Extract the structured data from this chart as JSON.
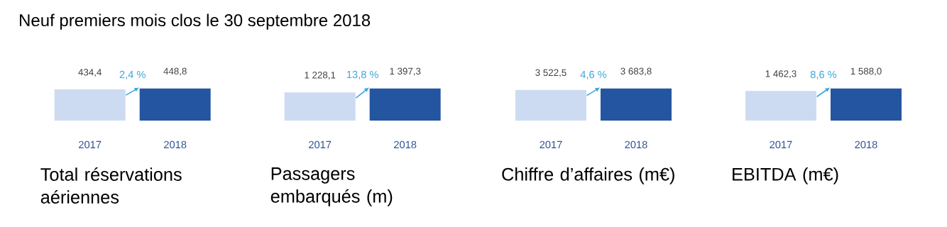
{
  "chart_data": [
    {
      "type": "bar",
      "title": "Neuf premiers mois clos le 30 septembre 2018",
      "xlabel": "Total réservations aériennes",
      "categories": [
        "2017",
        "2018"
      ],
      "values": [
        434.4,
        448.8
      ],
      "value_labels": [
        "434,4",
        "448,8"
      ],
      "colors": [
        "#cddbf2",
        "#2455a0"
      ],
      "annotations": [
        "2,4 %"
      ]
    },
    {
      "type": "bar",
      "xlabel": "Passagers embarqués (m)",
      "categories": [
        "2017",
        "2018"
      ],
      "values": [
        1228.1,
        1397.3
      ],
      "value_labels": [
        "1 228,1",
        "1 397,3"
      ],
      "colors": [
        "#cddbf2",
        "#2455a0"
      ],
      "annotations": [
        "13,8 %"
      ]
    },
    {
      "type": "bar",
      "xlabel": "Chiffre d’affaires (m€)",
      "categories": [
        "2017",
        "2018"
      ],
      "values": [
        3522.5,
        3683.8
      ],
      "value_labels": [
        "3 522,5",
        "3 683,8"
      ],
      "colors": [
        "#cddbf2",
        "#2455a0"
      ],
      "annotations": [
        "4,6 %"
      ]
    },
    {
      "type": "bar",
      "xlabel": "EBITDA (m€)",
      "categories": [
        "2017",
        "2018"
      ],
      "values": [
        1462.3,
        1588.0
      ],
      "value_labels": [
        "1 462,3",
        "1 588,0"
      ],
      "colors": [
        "#cddbf2",
        "#2455a0"
      ],
      "annotations": [
        "8,6 %"
      ]
    }
  ]
}
